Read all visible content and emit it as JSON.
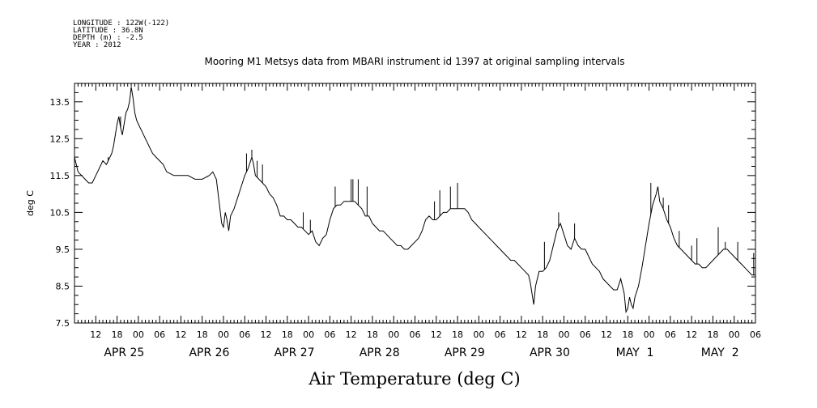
{
  "header": {
    "longitude": "LONGITUDE : 122W(-122)",
    "latitude": "LATITUDE : 36.8N",
    "depth": "DEPTH (m) : -2.5",
    "year": "YEAR : 2012"
  },
  "chart_data": {
    "type": "line",
    "title": "Mooring M1 Metsys data from MBARI instrument id 1397 at original sampling intervals",
    "xlabel": "Air Temperature (deg C)",
    "ylabel": "deg C",
    "ylim": [
      7.5,
      14.0
    ],
    "y_ticks": [
      "13.5",
      "12.5",
      "11.5",
      "10.5",
      "9.5",
      "8.5",
      "7.5"
    ],
    "xlim_hours": [
      6,
      198
    ],
    "hour_ticks": [
      "12",
      "18",
      "00",
      "06",
      "12",
      "18",
      "00",
      "06",
      "12",
      "18",
      "00",
      "06",
      "12",
      "18",
      "00",
      "06",
      "12",
      "18",
      "00",
      "06",
      "12",
      "18",
      "00",
      "06",
      "12",
      "18",
      "00",
      "06",
      "12",
      "18",
      "00",
      "06"
    ],
    "date_labels": [
      "APR 25",
      "APR 26",
      "APR 27",
      "APR 28",
      "APR 29",
      "APR 30",
      "MAY  1",
      "MAY  2"
    ],
    "x_unit": "hours since APR 25 00:00",
    "grid": false,
    "series": [
      {
        "color": "#000000",
        "points": [
          [
            6.0,
            12.0
          ],
          [
            7.0,
            11.6
          ],
          [
            8.0,
            11.5
          ],
          [
            9.0,
            11.4
          ],
          [
            10.0,
            11.3
          ],
          [
            11.0,
            11.3
          ],
          [
            12.0,
            11.5
          ],
          [
            13.0,
            11.7
          ],
          [
            14.0,
            11.9
          ],
          [
            15.0,
            11.8
          ],
          [
            16.0,
            12.0
          ],
          [
            16.5,
            12.1
          ],
          [
            17.0,
            12.3
          ],
          [
            17.5,
            12.6
          ],
          [
            18.0,
            12.9
          ],
          [
            18.5,
            13.1
          ],
          [
            19.0,
            12.8
          ],
          [
            19.5,
            12.6
          ],
          [
            20.0,
            12.9
          ],
          [
            20.5,
            13.2
          ],
          [
            21.0,
            13.3
          ],
          [
            21.5,
            13.5
          ],
          [
            22.0,
            13.9
          ],
          [
            22.5,
            13.6
          ],
          [
            23.0,
            13.2
          ],
          [
            23.5,
            13.0
          ],
          [
            24.0,
            12.9
          ],
          [
            25.0,
            12.7
          ],
          [
            26.0,
            12.5
          ],
          [
            27.0,
            12.3
          ],
          [
            28.0,
            12.1
          ],
          [
            29.0,
            12.0
          ],
          [
            30.0,
            11.9
          ],
          [
            31.0,
            11.8
          ],
          [
            32.0,
            11.6
          ],
          [
            34.0,
            11.5
          ],
          [
            36.0,
            11.5
          ],
          [
            38.0,
            11.5
          ],
          [
            40.0,
            11.4
          ],
          [
            42.0,
            11.4
          ],
          [
            44.0,
            11.5
          ],
          [
            45.0,
            11.6
          ],
          [
            46.0,
            11.4
          ],
          [
            46.5,
            11.0
          ],
          [
            47.0,
            10.6
          ],
          [
            47.5,
            10.2
          ],
          [
            48.0,
            10.1
          ],
          [
            48.5,
            10.5
          ],
          [
            49.0,
            10.3
          ],
          [
            49.5,
            10.0
          ],
          [
            50.0,
            10.4
          ],
          [
            51.0,
            10.6
          ],
          [
            52.0,
            10.9
          ],
          [
            53.0,
            11.2
          ],
          [
            54.0,
            11.5
          ],
          [
            55.0,
            11.7
          ],
          [
            56.0,
            12.0
          ],
          [
            56.5,
            11.8
          ],
          [
            57.0,
            11.5
          ],
          [
            58.0,
            11.4
          ],
          [
            59.0,
            11.3
          ],
          [
            60.0,
            11.2
          ],
          [
            61.0,
            11.0
          ],
          [
            62.0,
            10.9
          ],
          [
            63.0,
            10.7
          ],
          [
            64.0,
            10.4
          ],
          [
            65.0,
            10.4
          ],
          [
            66.0,
            10.3
          ],
          [
            67.0,
            10.3
          ],
          [
            68.0,
            10.2
          ],
          [
            69.0,
            10.1
          ],
          [
            70.0,
            10.1
          ],
          [
            71.0,
            10.0
          ],
          [
            72.0,
            9.9
          ],
          [
            73.0,
            10.0
          ],
          [
            74.0,
            9.7
          ],
          [
            75.0,
            9.6
          ],
          [
            76.0,
            9.8
          ],
          [
            77.0,
            9.9
          ],
          [
            78.0,
            10.3
          ],
          [
            79.0,
            10.6
          ],
          [
            80.0,
            10.7
          ],
          [
            81.0,
            10.7
          ],
          [
            82.0,
            10.8
          ],
          [
            83.0,
            10.8
          ],
          [
            84.0,
            10.8
          ],
          [
            85.0,
            10.8
          ],
          [
            86.0,
            10.7
          ],
          [
            87.0,
            10.6
          ],
          [
            88.0,
            10.4
          ],
          [
            89.0,
            10.4
          ],
          [
            90.0,
            10.2
          ],
          [
            91.0,
            10.1
          ],
          [
            92.0,
            10.0
          ],
          [
            93.0,
            10.0
          ],
          [
            94.0,
            9.9
          ],
          [
            95.0,
            9.8
          ],
          [
            96.0,
            9.7
          ],
          [
            97.0,
            9.6
          ],
          [
            98.0,
            9.6
          ],
          [
            99.0,
            9.5
          ],
          [
            100.0,
            9.5
          ],
          [
            101.0,
            9.6
          ],
          [
            102.0,
            9.7
          ],
          [
            103.0,
            9.8
          ],
          [
            104.0,
            10.0
          ],
          [
            105.0,
            10.3
          ],
          [
            106.0,
            10.4
          ],
          [
            107.0,
            10.3
          ],
          [
            108.0,
            10.3
          ],
          [
            109.0,
            10.4
          ],
          [
            110.0,
            10.5
          ],
          [
            111.0,
            10.5
          ],
          [
            112.0,
            10.6
          ],
          [
            114.0,
            10.6
          ],
          [
            116.0,
            10.6
          ],
          [
            117.0,
            10.5
          ],
          [
            118.0,
            10.3
          ],
          [
            119.0,
            10.2
          ],
          [
            120.0,
            10.1
          ],
          [
            121.0,
            10.0
          ],
          [
            122.0,
            9.9
          ],
          [
            123.0,
            9.8
          ],
          [
            124.0,
            9.7
          ],
          [
            125.0,
            9.6
          ],
          [
            126.0,
            9.5
          ],
          [
            127.0,
            9.4
          ],
          [
            128.0,
            9.3
          ],
          [
            129.0,
            9.2
          ],
          [
            130.0,
            9.2
          ],
          [
            131.0,
            9.1
          ],
          [
            132.0,
            9.0
          ],
          [
            133.0,
            8.9
          ],
          [
            134.0,
            8.8
          ],
          [
            134.5,
            8.6
          ],
          [
            135.0,
            8.3
          ],
          [
            135.5,
            8.0
          ],
          [
            136.0,
            8.5
          ],
          [
            137.0,
            8.9
          ],
          [
            138.0,
            8.9
          ],
          [
            139.0,
            9.0
          ],
          [
            140.0,
            9.2
          ],
          [
            141.0,
            9.6
          ],
          [
            142.0,
            10.0
          ],
          [
            143.0,
            10.2
          ],
          [
            144.0,
            9.9
          ],
          [
            145.0,
            9.6
          ],
          [
            146.0,
            9.5
          ],
          [
            147.0,
            9.8
          ],
          [
            148.0,
            9.6
          ],
          [
            149.0,
            9.5
          ],
          [
            150.0,
            9.5
          ],
          [
            151.0,
            9.3
          ],
          [
            152.0,
            9.1
          ],
          [
            153.0,
            9.0
          ],
          [
            154.0,
            8.9
          ],
          [
            155.0,
            8.7
          ],
          [
            156.0,
            8.6
          ],
          [
            157.0,
            8.5
          ],
          [
            158.0,
            8.4
          ],
          [
            159.0,
            8.4
          ],
          [
            160.0,
            8.7
          ],
          [
            161.0,
            8.3
          ],
          [
            161.5,
            7.8
          ],
          [
            162.0,
            7.9
          ],
          [
            162.5,
            8.2
          ],
          [
            163.0,
            8.0
          ],
          [
            163.5,
            7.9
          ],
          [
            164.0,
            8.2
          ],
          [
            165.0,
            8.5
          ],
          [
            166.0,
            9.0
          ],
          [
            167.0,
            9.6
          ],
          [
            168.0,
            10.2
          ],
          [
            169.0,
            10.7
          ],
          [
            170.0,
            11.0
          ],
          [
            170.5,
            11.2
          ],
          [
            171.0,
            10.8
          ],
          [
            172.0,
            10.6
          ],
          [
            173.0,
            10.3
          ],
          [
            174.0,
            10.1
          ],
          [
            175.0,
            9.8
          ],
          [
            176.0,
            9.6
          ],
          [
            177.0,
            9.5
          ],
          [
            178.0,
            9.4
          ],
          [
            179.0,
            9.3
          ],
          [
            180.0,
            9.2
          ],
          [
            181.0,
            9.1
          ],
          [
            182.0,
            9.1
          ],
          [
            183.0,
            9.0
          ],
          [
            184.0,
            9.0
          ],
          [
            185.0,
            9.1
          ],
          [
            186.0,
            9.2
          ],
          [
            187.0,
            9.3
          ],
          [
            188.0,
            9.4
          ],
          [
            189.0,
            9.5
          ],
          [
            190.0,
            9.5
          ],
          [
            191.0,
            9.4
          ],
          [
            192.0,
            9.3
          ],
          [
            193.0,
            9.2
          ],
          [
            194.0,
            9.1
          ],
          [
            195.0,
            9.0
          ],
          [
            196.0,
            8.9
          ],
          [
            197.0,
            8.8
          ],
          [
            198.0,
            8.8
          ]
        ]
      }
    ],
    "spikes": [
      [
        15.5,
        12.0
      ],
      [
        19.0,
        13.1
      ],
      [
        54.5,
        12.1
      ],
      [
        56.0,
        12.2
      ],
      [
        57.5,
        11.9
      ],
      [
        59.0,
        11.8
      ],
      [
        70.5,
        10.5
      ],
      [
        72.5,
        10.3
      ],
      [
        79.5,
        11.2
      ],
      [
        84.0,
        11.4
      ],
      [
        84.5,
        11.4
      ],
      [
        86.0,
        11.4
      ],
      [
        88.5,
        11.2
      ],
      [
        107.5,
        10.8
      ],
      [
        109.0,
        11.1
      ],
      [
        112.0,
        11.2
      ],
      [
        114.0,
        11.3
      ],
      [
        138.5,
        9.7
      ],
      [
        142.5,
        10.5
      ],
      [
        147.0,
        10.2
      ],
      [
        168.5,
        11.3
      ],
      [
        172.0,
        10.9
      ],
      [
        173.5,
        10.7
      ],
      [
        176.5,
        10.0
      ],
      [
        180.0,
        9.6
      ],
      [
        181.5,
        9.8
      ],
      [
        187.5,
        10.1
      ],
      [
        189.5,
        9.7
      ],
      [
        193.0,
        9.7
      ],
      [
        197.5,
        9.4
      ]
    ]
  }
}
